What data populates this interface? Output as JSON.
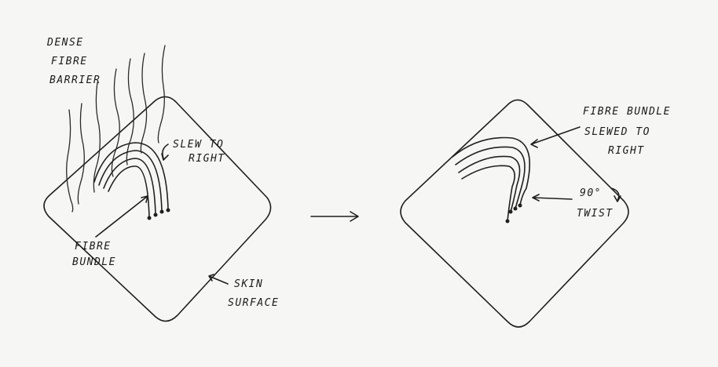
{
  "left_panel": {
    "barrier_label": [
      "DENSE",
      "FIBRE",
      "BARRIER"
    ],
    "slew_label": [
      "SLEW TO",
      "RIGHT"
    ],
    "bundle_label": [
      "FIBRE",
      "BUNDLE"
    ],
    "skin_label": [
      "SKIN",
      "SURFACE"
    ]
  },
  "right_panel": {
    "bundle_slewed_label": [
      "FIBRE BUNDLE",
      "SLEWED TO",
      "RIGHT"
    ],
    "twist_label": [
      "90°",
      "TWIST"
    ]
  },
  "colors": {
    "paper": "#f6f6f4",
    "ink": "#1f1f1f"
  }
}
